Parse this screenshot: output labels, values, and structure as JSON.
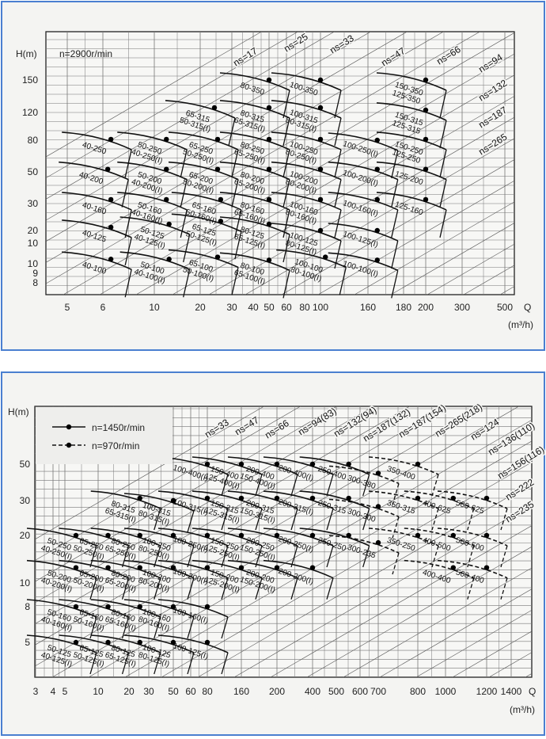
{
  "colors": {
    "frame": "#4a7fd0",
    "background": "#f4f4f2",
    "grid": "#777777",
    "curve": "#111111"
  },
  "chart_data": [
    {
      "type": "scatter",
      "subtype": "pump-selection-chart",
      "title": "n=2900r/min",
      "ylabel": "H(m)",
      "xlabel": "Q",
      "xunit": "(m³/h)",
      "x_scale": "log",
      "y_scale": "log",
      "grid": true,
      "x_ticks": [
        "5",
        "6",
        "10",
        "20",
        "30",
        "40",
        "50",
        "60",
        "80",
        "100",
        "160",
        "180",
        "200",
        "300",
        "500"
      ],
      "y_ticks": [
        "150",
        "120",
        "80",
        "50",
        "30",
        "20",
        "10",
        "10",
        "9",
        "8"
      ],
      "ns_labels": [
        "ns=17",
        "ns=25",
        "ns=33",
        "ns=47",
        "ns=66",
        "ns=94",
        "ns=132",
        "ns=187",
        "ns=265"
      ],
      "series": [
        {
          "name": "n=2900r/min",
          "style": "solid",
          "points": [
            {
              "models": [
                "80-350"
              ],
              "q": 50,
              "h": 152
            },
            {
              "models": [
                "100-350"
              ],
              "q": 100,
              "h": 152
            },
            {
              "models": [
                "150-350",
                "125-350"
              ],
              "q": 200,
              "h": 152
            },
            {
              "models": [
                "65-315",
                "50-315(I)"
              ],
              "q": 24,
              "h": 124
            },
            {
              "models": [
                "80-315",
                "65-315(I)"
              ],
              "q": 50,
              "h": 124
            },
            {
              "models": [
                "100-315",
                "80-315(I)"
              ],
              "q": 100,
              "h": 124
            },
            {
              "models": [
                "150-315",
                "125-315"
              ],
              "q": 200,
              "h": 122
            },
            {
              "models": [
                "40-250"
              ],
              "q": 6.5,
              "h": 81
            },
            {
              "models": [
                "50-250",
                "40-250(I)"
              ],
              "q": 12,
              "h": 81
            },
            {
              "models": [
                "65-250",
                "50-250(I)"
              ],
              "q": 25,
              "h": 81
            },
            {
              "models": [
                "80-250",
                "65-250(I)"
              ],
              "q": 50,
              "h": 81
            },
            {
              "models": [
                "100-250",
                "80-250(I)"
              ],
              "q": 100,
              "h": 81
            },
            {
              "models": [
                "100-250(I)"
              ],
              "q": 165,
              "h": 80
            },
            {
              "models": [
                "150-250",
                "125-250"
              ],
              "q": 200,
              "h": 81
            },
            {
              "models": [
                "40-200"
              ],
              "q": 6.3,
              "h": 52
            },
            {
              "models": [
                "50-200",
                "40-200(I)"
              ],
              "q": 12,
              "h": 52
            },
            {
              "models": [
                "65-200",
                "50-200(I)"
              ],
              "q": 25,
              "h": 52
            },
            {
              "models": [
                "80-200",
                "65-200(I)"
              ],
              "q": 50,
              "h": 52
            },
            {
              "models": [
                "100-200",
                "80-200(I)"
              ],
              "q": 100,
              "h": 52
            },
            {
              "models": [
                "100-200(I)"
              ],
              "q": 165,
              "h": 52
            },
            {
              "models": [
                "125-200"
              ],
              "q": 200,
              "h": 52
            },
            {
              "models": [
                "40-160"
              ],
              "q": 6.5,
              "h": 32
            },
            {
              "models": [
                "50-160",
                "40-160(I)"
              ],
              "q": 12,
              "h": 32
            },
            {
              "models": [
                "65-160",
                "50-160(I)"
              ],
              "q": 26,
              "h": 32
            },
            {
              "models": [
                "80-160",
                "65-160(I)"
              ],
              "q": 50,
              "h": 32
            },
            {
              "models": [
                "100-160",
                "80-160(I)"
              ],
              "q": 100,
              "h": 32
            },
            {
              "models": [
                "100-160(I)"
              ],
              "q": 165,
              "h": 32
            },
            {
              "models": [
                "125-160"
              ],
              "q": 200,
              "h": 32
            },
            {
              "models": [
                "40-125"
              ],
              "q": 6.5,
              "h": 21
            },
            {
              "models": [
                "50-125",
                "40-125(I)"
              ],
              "q": 12.5,
              "h": 22
            },
            {
              "models": [
                "65-125",
                "50-125(I)"
              ],
              "q": 26,
              "h": 23
            },
            {
              "models": [
                "80-125",
                "65-125(I)"
              ],
              "q": 50,
              "h": 22
            },
            {
              "models": [
                "100-125",
                "80-125(I)"
              ],
              "q": 100,
              "h": 20
            },
            {
              "models": [
                "100-125(I)"
              ],
              "q": 165,
              "h": 20
            },
            {
              "models": [
                "40-100"
              ],
              "q": 6.5,
              "h": 11
            },
            {
              "models": [
                "50-100",
                "40-100(I)"
              ],
              "q": 12.5,
              "h": 11
            },
            {
              "models": [
                "65-100",
                "50-100(I)"
              ],
              "q": 25,
              "h": 11.5
            },
            {
              "models": [
                "80-100",
                "65-100(I)"
              ],
              "q": 50,
              "h": 10.8
            },
            {
              "models": [
                "100-100",
                "80-100(I)"
              ],
              "q": 105,
              "h": 11.5
            },
            {
              "models": [
                "100-100(I)"
              ],
              "q": 165,
              "h": 10.8
            }
          ]
        }
      ]
    },
    {
      "type": "scatter",
      "subtype": "pump-selection-chart",
      "ylabel": "H(m)",
      "xlabel": "Q",
      "xunit": "(m³/h)",
      "x_scale": "log",
      "y_scale": "log",
      "grid": true,
      "legend": {
        "placement": "top-left",
        "items": [
          {
            "label": "n=1450r/min",
            "style": "solid"
          },
          {
            "label": "n=970r/min",
            "style": "dashed"
          }
        ]
      },
      "x_ticks": [
        "3",
        "4",
        "5",
        "10",
        "20",
        "30",
        "50",
        "60",
        "80",
        "160",
        "200",
        "400",
        "500",
        "600",
        "700",
        "800",
        "1000",
        "1200",
        "1400"
      ],
      "y_ticks": [
        "50",
        "30",
        "20",
        "10",
        "8",
        "5"
      ],
      "ns_labels": [
        "ns=33",
        "ns=47",
        "ns=66",
        "ns=94(83)",
        "ns=132(94)",
        "ns=187(132)",
        "ns=187(154)",
        "ns=265(218)",
        "ns=124",
        "ns=136(110)",
        "ns=156(116)",
        "ns=222",
        "ns=235"
      ],
      "series": [
        {
          "name": "n=1450r/min",
          "style": "solid",
          "points": [
            {
              "models": [
                "100-400(I)"
              ],
              "q": 80,
              "h": 50
            },
            {
              "models": [
                "150-400",
                "125-400(I)"
              ],
              "q": 160,
              "h": 50
            },
            {
              "models": [
                "200-400",
                "150-400(I)"
              ],
              "q": 200,
              "h": 50
            },
            {
              "models": [
                "200-400(I)"
              ],
              "q": 400,
              "h": 50
            },
            {
              "models": [
                "250-400"
              ],
              "q": 550,
              "h": 50
            },
            {
              "models": [
                "80-315",
                "65-315(I)"
              ],
              "q": 25,
              "h": 31
            },
            {
              "models": [
                "100-315",
                "80-315(I)"
              ],
              "q": 50,
              "h": 30
            },
            {
              "models": [
                "100-315(I)"
              ],
              "q": 80,
              "h": 31
            },
            {
              "models": [
                "150-315",
                "125-315(I)"
              ],
              "q": 160,
              "h": 31
            },
            {
              "models": [
                "200-315",
                "150-315(I)"
              ],
              "q": 200,
              "h": 31
            },
            {
              "models": [
                "200-315(I)"
              ],
              "q": 400,
              "h": 31
            },
            {
              "models": [
                "250-315"
              ],
              "q": 550,
              "h": 31
            },
            {
              "models": [
                "50-250",
                "40-250(I)"
              ],
              "q": 6.3,
              "h": 20
            },
            {
              "models": [
                "65-250",
                "50-250(I)"
              ],
              "q": 12.5,
              "h": 20
            },
            {
              "models": [
                "80-250",
                "65-250(I)"
              ],
              "q": 25,
              "h": 20
            },
            {
              "models": [
                "100-250",
                "80-250(I)"
              ],
              "q": 50,
              "h": 20
            },
            {
              "models": [
                "100-250(I)"
              ],
              "q": 80,
              "h": 20
            },
            {
              "models": [
                "150-250",
                "125-250(I)"
              ],
              "q": 160,
              "h": 20
            },
            {
              "models": [
                "200-250",
                "150-250(I)"
              ],
              "q": 200,
              "h": 20
            },
            {
              "models": [
                "200-250(I)"
              ],
              "q": 400,
              "h": 20
            },
            {
              "models": [
                "250-250"
              ],
              "q": 550,
              "h": 20
            },
            {
              "models": [
                "50-200",
                "40-200(I)"
              ],
              "q": 6.3,
              "h": 12.5
            },
            {
              "models": [
                "65-200",
                "50-200(I)"
              ],
              "q": 12.5,
              "h": 12.5
            },
            {
              "models": [
                "80-200",
                "65-200(I)"
              ],
              "q": 25,
              "h": 12.5
            },
            {
              "models": [
                "100-200",
                "80-200(I)"
              ],
              "q": 50,
              "h": 12.5
            },
            {
              "models": [
                "100-200(I)"
              ],
              "q": 80,
              "h": 12.5
            },
            {
              "models": [
                "150-200",
                "125-200(I)"
              ],
              "q": 160,
              "h": 12.5
            },
            {
              "models": [
                "200-200",
                "150-200(I)"
              ],
              "q": 200,
              "h": 12.5
            },
            {
              "models": [
                "200-200(I)"
              ],
              "q": 400,
              "h": 12.5
            },
            {
              "models": [
                "50-160",
                "40-160(I)"
              ],
              "q": 6.3,
              "h": 8
            },
            {
              "models": [
                "65-160",
                "50-160(I)"
              ],
              "q": 12.5,
              "h": 8
            },
            {
              "models": [
                "80-160",
                "65-160(I)"
              ],
              "q": 25,
              "h": 8
            },
            {
              "models": [
                "100-160",
                "80-160(I)"
              ],
              "q": 50,
              "h": 8
            },
            {
              "models": [
                "100-160(I)"
              ],
              "q": 80,
              "h": 8
            },
            {
              "models": [
                "50-125",
                "40-125(I)"
              ],
              "q": 6.3,
              "h": 5
            },
            {
              "models": [
                "65-125",
                "50-125(I)"
              ],
              "q": 12.5,
              "h": 5
            },
            {
              "models": [
                "80-125",
                "65-125(I)"
              ],
              "q": 25,
              "h": 5
            },
            {
              "models": [
                "100-125",
                "80-125(I)"
              ],
              "q": 50,
              "h": 5
            },
            {
              "models": [
                "100-125(I)"
              ],
              "q": 80,
              "h": 5
            }
          ]
        },
        {
          "name": "n=970r/min",
          "style": "dashed",
          "points": [
            {
              "models": [
                "300-380"
              ],
              "q": 700,
              "h": 44
            },
            {
              "models": [
                "350-400"
              ],
              "q": 800,
              "h": 50
            },
            {
              "models": [
                "300-300"
              ],
              "q": 700,
              "h": 28
            },
            {
              "models": [
                "350-315"
              ],
              "q": 800,
              "h": 31
            },
            {
              "models": [
                "400-625"
              ],
              "q": 1035,
              "h": 31
            },
            {
              "models": [
                "500-625"
              ],
              "q": 1200,
              "h": 31
            },
            {
              "models": [
                "300-235"
              ],
              "q": 700,
              "h": 18
            },
            {
              "models": [
                "350-250"
              ],
              "q": 800,
              "h": 20
            },
            {
              "models": [
                "400-500"
              ],
              "q": 1035,
              "h": 20
            },
            {
              "models": [
                "500-500"
              ],
              "q": 1200,
              "h": 20
            },
            {
              "models": [
                "400-400"
              ],
              "q": 1035,
              "h": 12.5
            },
            {
              "models": [
                "500-400"
              ],
              "q": 1200,
              "h": 12.5
            }
          ]
        }
      ]
    }
  ]
}
